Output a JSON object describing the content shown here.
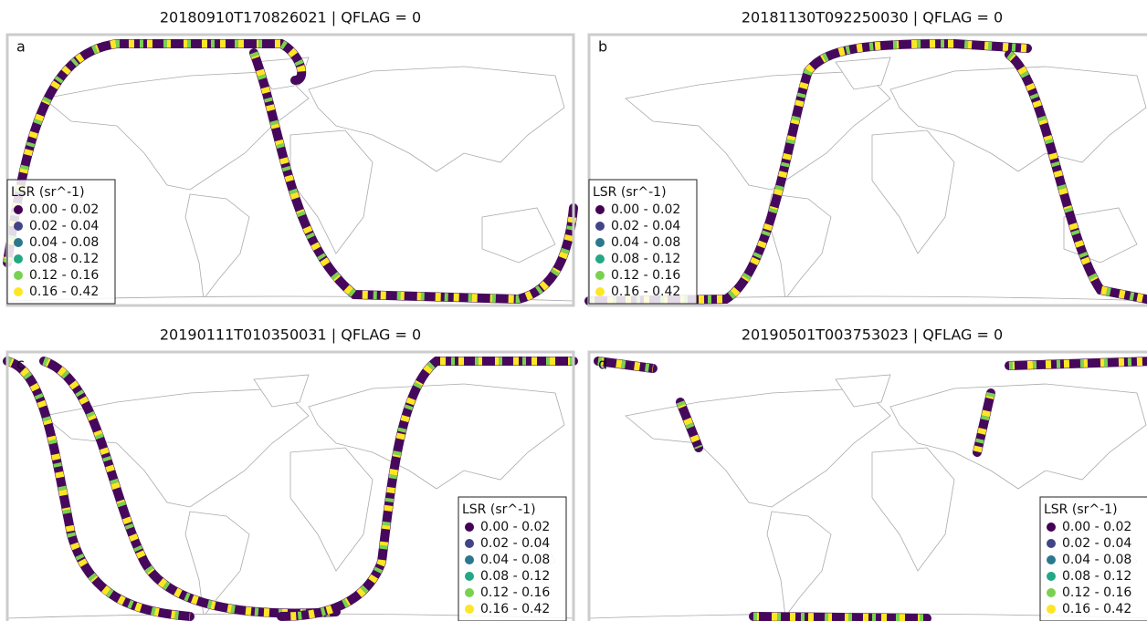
{
  "legend_title": "LSR (sr^-1)",
  "legend_entries": [
    {
      "label": "0.00 - 0.02",
      "color": "#440154"
    },
    {
      "label": "0.02 - 0.04",
      "color": "#414487"
    },
    {
      "label": "0.04 - 0.08",
      "color": "#2a788e"
    },
    {
      "label": "0.08 - 0.12",
      "color": "#22a884"
    },
    {
      "label": "0.12 - 0.16",
      "color": "#7ad151"
    },
    {
      "label": "0.16 - 0.42",
      "color": "#fde725"
    }
  ],
  "panels": [
    {
      "title": "20180910T170826021 | QFLAG = 0",
      "letter": "a",
      "legend_position": "lower left"
    },
    {
      "title": "20181130T092250030 | QFLAG = 0",
      "letter": "b",
      "legend_position": "lower left"
    },
    {
      "title": "20190111T010350031 | QFLAG = 0",
      "letter": "c",
      "legend_position": "lower right"
    },
    {
      "title": "20190501T003753023 | QFLAG = 0",
      "letter": "d",
      "legend_position": "lower right"
    }
  ]
}
